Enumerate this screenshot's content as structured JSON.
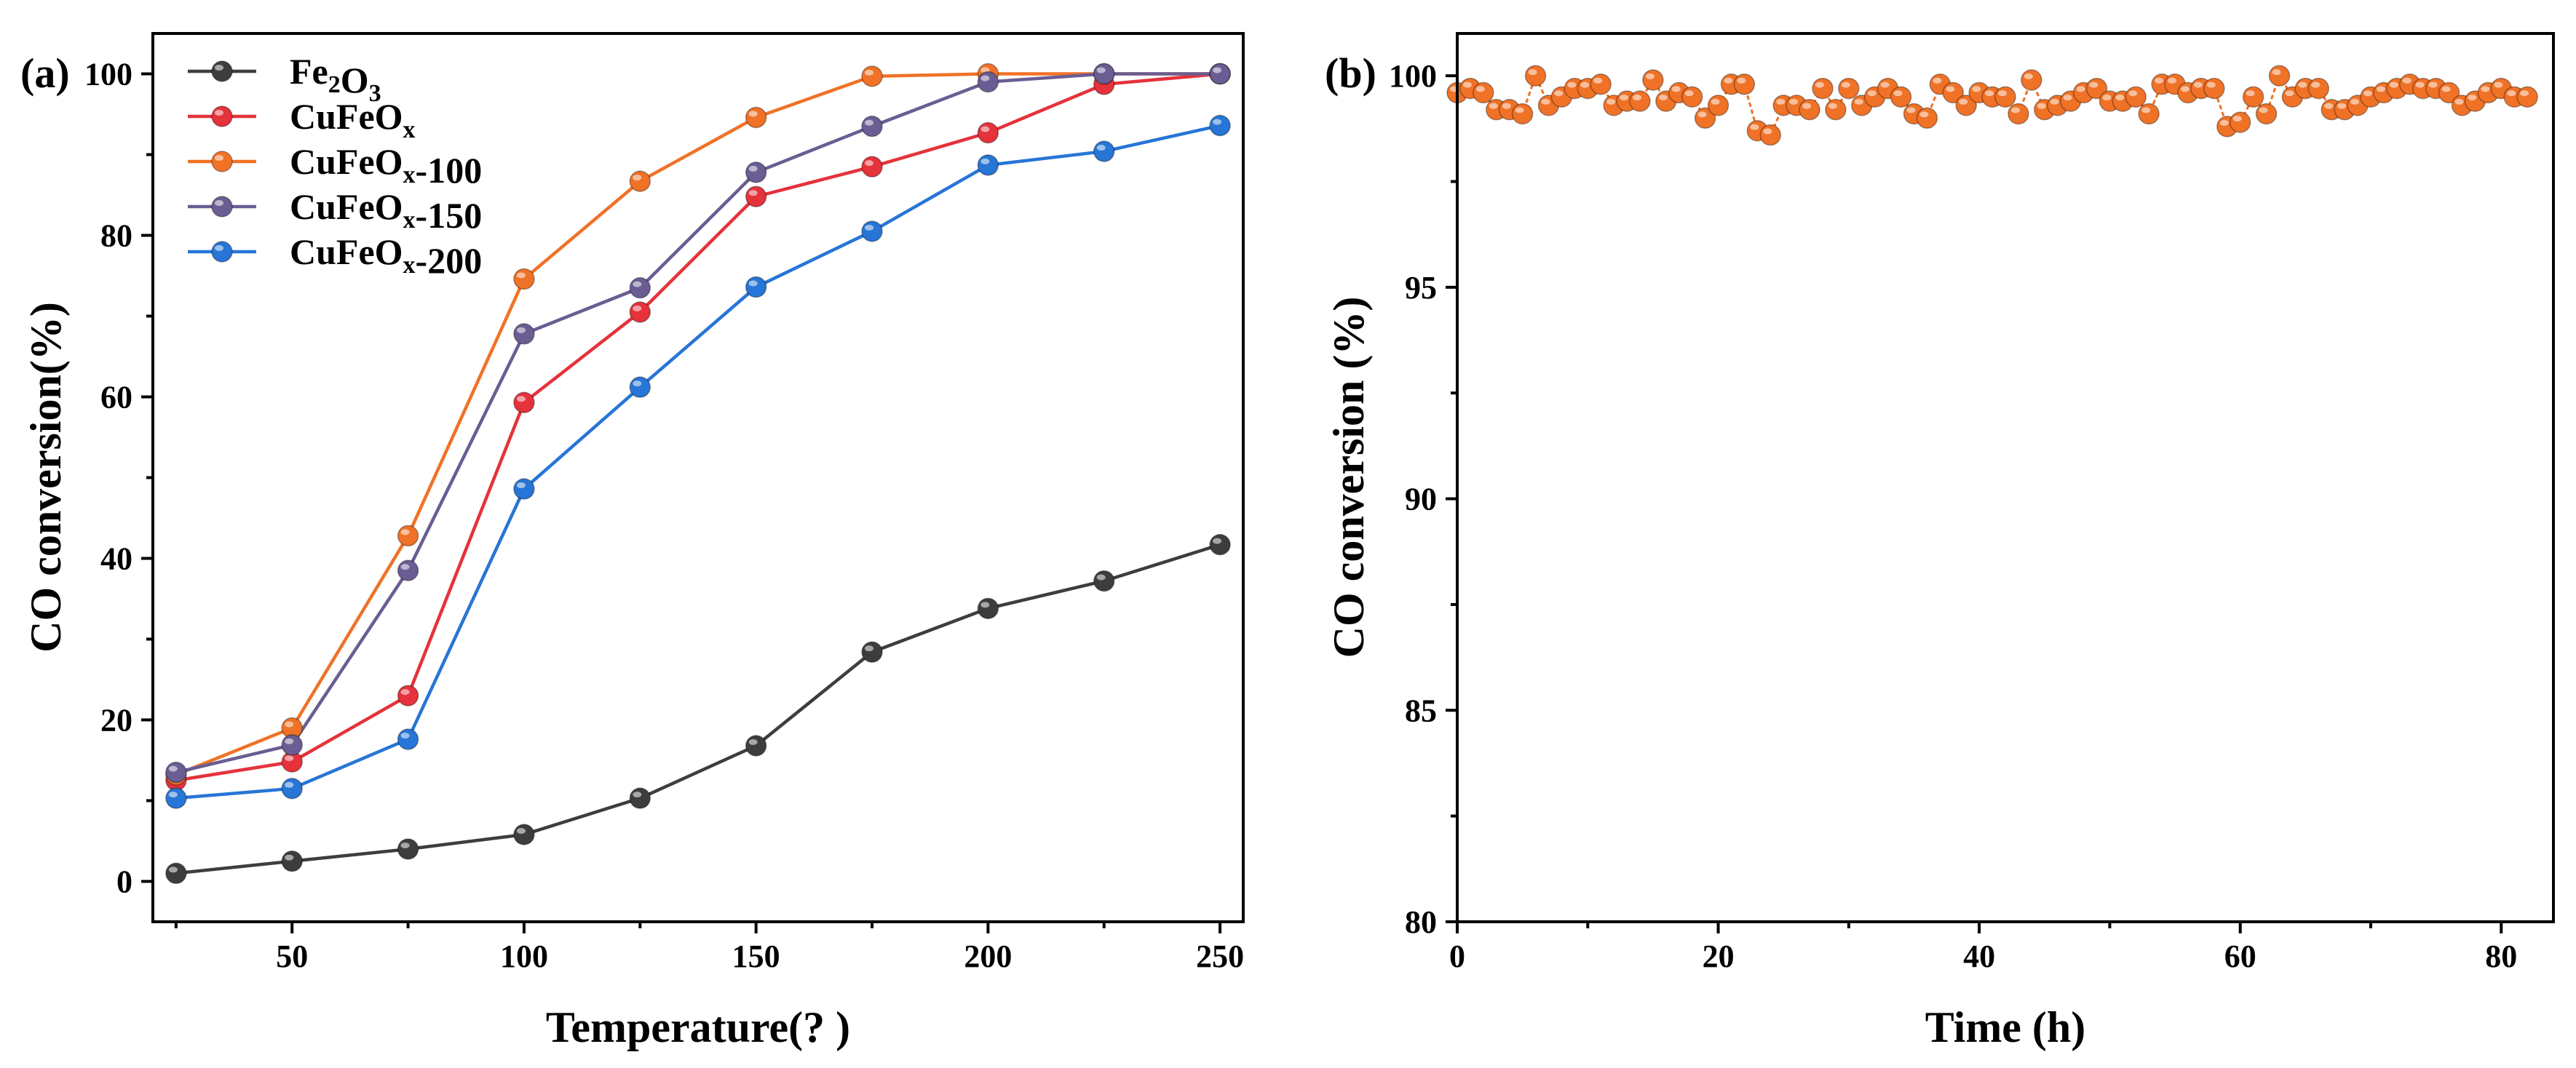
{
  "chart_data": [
    {
      "panel": "(a)",
      "type": "line",
      "xlabel": "Temperature(?  )",
      "ylabel": "CO conversion(%)",
      "xlim": [
        20,
        255
      ],
      "ylim": [
        -5,
        105
      ],
      "xticks": [
        50,
        100,
        150,
        200,
        250
      ],
      "yticks": [
        0,
        20,
        40,
        60,
        80,
        100
      ],
      "x": [
        25,
        50,
        75,
        100,
        125,
        150,
        175,
        200,
        225,
        250
      ],
      "legend_position": "top-left",
      "series": [
        {
          "name": "Fe2O3",
          "label_main": "Fe",
          "label_sub1": "2",
          "label_mid": "O",
          "label_sub2": "3",
          "label_tail": "",
          "color": "#3d3d3d",
          "values": [
            1.0,
            2.5,
            4.0,
            5.8,
            10.3,
            16.8,
            28.4,
            33.8,
            37.2,
            41.7
          ]
        },
        {
          "name": "CuFeOx",
          "label_main": "CuFeO",
          "label_sub1": "x",
          "label_tail": "",
          "color": "#e5323b",
          "values": [
            12.5,
            14.8,
            23.0,
            59.3,
            70.5,
            84.8,
            88.5,
            92.7,
            98.7,
            100.0
          ]
        },
        {
          "name": "CuFeOx-100",
          "label_main": "CuFeO",
          "label_sub1": "x",
          "label_tail": "-100",
          "color": "#f07227",
          "values": [
            13.2,
            19.0,
            42.8,
            74.6,
            86.7,
            94.6,
            99.7,
            100.0,
            100.0,
            100.0
          ]
        },
        {
          "name": "CuFeOx-150",
          "label_main": "CuFeO",
          "label_sub1": "x",
          "label_tail": "-150",
          "color": "#6a5d93",
          "values": [
            13.5,
            16.9,
            38.5,
            67.8,
            73.5,
            87.8,
            93.5,
            99.0,
            100.0,
            100.0
          ]
        },
        {
          "name": "CuFeOx-200",
          "label_main": "CuFeO",
          "label_sub1": "x",
          "label_tail": "-200",
          "color": "#2775d6",
          "values": [
            10.3,
            11.5,
            17.6,
            48.6,
            61.2,
            73.6,
            80.5,
            88.7,
            90.4,
            93.6
          ]
        }
      ]
    },
    {
      "panel": "(b)",
      "type": "line",
      "xlabel": "Time (h)",
      "ylabel": "CO conversion (%)",
      "xlim": [
        0,
        84
      ],
      "ylim": [
        80,
        101
      ],
      "xticks": [
        0,
        20,
        40,
        60,
        80
      ],
      "yticks": [
        80,
        85,
        90,
        95,
        100
      ],
      "series": [
        {
          "name": "CO conversion",
          "color": "#f07227",
          "x": [
            0,
            1,
            2,
            3,
            4,
            5,
            6,
            7,
            8,
            9,
            10,
            11,
            12,
            13,
            14,
            15,
            16,
            17,
            18,
            19,
            20,
            21,
            22,
            23,
            24,
            25,
            26,
            27,
            28,
            29,
            30,
            31,
            32,
            33,
            34,
            35,
            36,
            37,
            38,
            39,
            40,
            41,
            42,
            43,
            44,
            45,
            46,
            47,
            48,
            49,
            50,
            51,
            52,
            53,
            54,
            55,
            56,
            57,
            58,
            59,
            60,
            61,
            62,
            63,
            64,
            65,
            66,
            67,
            68,
            69,
            70,
            71,
            72,
            73,
            74,
            75,
            76,
            77,
            78,
            79,
            80,
            81,
            82
          ],
          "values": [
            99.6,
            99.7,
            99.6,
            99.2,
            99.2,
            99.1,
            100.0,
            99.3,
            99.5,
            99.7,
            99.7,
            99.8,
            99.3,
            99.4,
            99.4,
            99.9,
            99.4,
            99.6,
            99.5,
            99.0,
            99.3,
            99.8,
            99.8,
            98.7,
            98.6,
            99.3,
            99.3,
            99.2,
            99.7,
            99.2,
            99.7,
            99.3,
            99.5,
            99.7,
            99.5,
            99.1,
            99.0,
            99.8,
            99.6,
            99.3,
            99.6,
            99.5,
            99.5,
            99.1,
            99.9,
            99.2,
            99.3,
            99.4,
            99.6,
            99.7,
            99.4,
            99.4,
            99.5,
            99.1,
            99.8,
            99.8,
            99.6,
            99.7,
            99.7,
            98.8,
            98.9,
            99.5,
            99.1,
            100.0,
            99.5,
            99.7,
            99.7,
            99.2,
            99.2,
            99.3,
            99.5,
            99.6,
            99.7,
            99.8,
            99.7,
            99.7,
            99.6,
            99.3,
            99.4,
            99.6,
            99.7,
            99.5,
            99.5
          ]
        }
      ]
    }
  ]
}
